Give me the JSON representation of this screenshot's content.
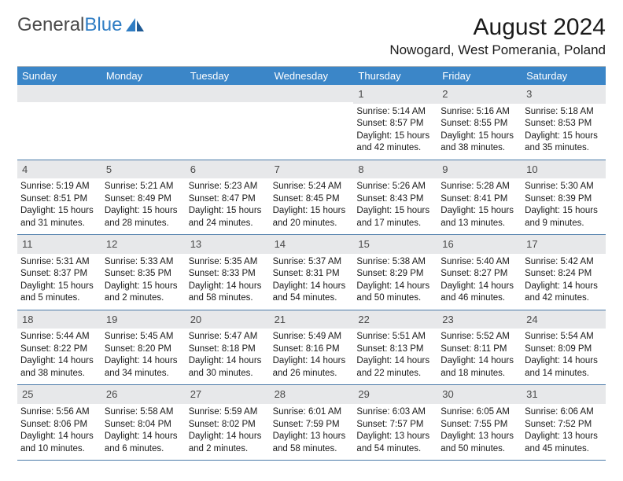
{
  "logo": {
    "text1": "General",
    "text2": "Blue"
  },
  "title": "August 2024",
  "location": "Nowogard, West Pomerania, Poland",
  "colors": {
    "header_bg": "#3b86c8",
    "daynum_bg": "#e7e8ea",
    "week_border": "#4a7aa8",
    "text": "#1a1a1a"
  },
  "weekdays": [
    "Sunday",
    "Monday",
    "Tuesday",
    "Wednesday",
    "Thursday",
    "Friday",
    "Saturday"
  ],
  "weeks": [
    [
      null,
      null,
      null,
      null,
      {
        "n": "1",
        "sr": "5:14 AM",
        "ss": "8:57 PM",
        "dl": "Daylight: 15 hours and 42 minutes."
      },
      {
        "n": "2",
        "sr": "5:16 AM",
        "ss": "8:55 PM",
        "dl": "Daylight: 15 hours and 38 minutes."
      },
      {
        "n": "3",
        "sr": "5:18 AM",
        "ss": "8:53 PM",
        "dl": "Daylight: 15 hours and 35 minutes."
      }
    ],
    [
      {
        "n": "4",
        "sr": "5:19 AM",
        "ss": "8:51 PM",
        "dl": "Daylight: 15 hours and 31 minutes."
      },
      {
        "n": "5",
        "sr": "5:21 AM",
        "ss": "8:49 PM",
        "dl": "Daylight: 15 hours and 28 minutes."
      },
      {
        "n": "6",
        "sr": "5:23 AM",
        "ss": "8:47 PM",
        "dl": "Daylight: 15 hours and 24 minutes."
      },
      {
        "n": "7",
        "sr": "5:24 AM",
        "ss": "8:45 PM",
        "dl": "Daylight: 15 hours and 20 minutes."
      },
      {
        "n": "8",
        "sr": "5:26 AM",
        "ss": "8:43 PM",
        "dl": "Daylight: 15 hours and 17 minutes."
      },
      {
        "n": "9",
        "sr": "5:28 AM",
        "ss": "8:41 PM",
        "dl": "Daylight: 15 hours and 13 minutes."
      },
      {
        "n": "10",
        "sr": "5:30 AM",
        "ss": "8:39 PM",
        "dl": "Daylight: 15 hours and 9 minutes."
      }
    ],
    [
      {
        "n": "11",
        "sr": "5:31 AM",
        "ss": "8:37 PM",
        "dl": "Daylight: 15 hours and 5 minutes."
      },
      {
        "n": "12",
        "sr": "5:33 AM",
        "ss": "8:35 PM",
        "dl": "Daylight: 15 hours and 2 minutes."
      },
      {
        "n": "13",
        "sr": "5:35 AM",
        "ss": "8:33 PM",
        "dl": "Daylight: 14 hours and 58 minutes."
      },
      {
        "n": "14",
        "sr": "5:37 AM",
        "ss": "8:31 PM",
        "dl": "Daylight: 14 hours and 54 minutes."
      },
      {
        "n": "15",
        "sr": "5:38 AM",
        "ss": "8:29 PM",
        "dl": "Daylight: 14 hours and 50 minutes."
      },
      {
        "n": "16",
        "sr": "5:40 AM",
        "ss": "8:27 PM",
        "dl": "Daylight: 14 hours and 46 minutes."
      },
      {
        "n": "17",
        "sr": "5:42 AM",
        "ss": "8:24 PM",
        "dl": "Daylight: 14 hours and 42 minutes."
      }
    ],
    [
      {
        "n": "18",
        "sr": "5:44 AM",
        "ss": "8:22 PM",
        "dl": "Daylight: 14 hours and 38 minutes."
      },
      {
        "n": "19",
        "sr": "5:45 AM",
        "ss": "8:20 PM",
        "dl": "Daylight: 14 hours and 34 minutes."
      },
      {
        "n": "20",
        "sr": "5:47 AM",
        "ss": "8:18 PM",
        "dl": "Daylight: 14 hours and 30 minutes."
      },
      {
        "n": "21",
        "sr": "5:49 AM",
        "ss": "8:16 PM",
        "dl": "Daylight: 14 hours and 26 minutes."
      },
      {
        "n": "22",
        "sr": "5:51 AM",
        "ss": "8:13 PM",
        "dl": "Daylight: 14 hours and 22 minutes."
      },
      {
        "n": "23",
        "sr": "5:52 AM",
        "ss": "8:11 PM",
        "dl": "Daylight: 14 hours and 18 minutes."
      },
      {
        "n": "24",
        "sr": "5:54 AM",
        "ss": "8:09 PM",
        "dl": "Daylight: 14 hours and 14 minutes."
      }
    ],
    [
      {
        "n": "25",
        "sr": "5:56 AM",
        "ss": "8:06 PM",
        "dl": "Daylight: 14 hours and 10 minutes."
      },
      {
        "n": "26",
        "sr": "5:58 AM",
        "ss": "8:04 PM",
        "dl": "Daylight: 14 hours and 6 minutes."
      },
      {
        "n": "27",
        "sr": "5:59 AM",
        "ss": "8:02 PM",
        "dl": "Daylight: 14 hours and 2 minutes."
      },
      {
        "n": "28",
        "sr": "6:01 AM",
        "ss": "7:59 PM",
        "dl": "Daylight: 13 hours and 58 minutes."
      },
      {
        "n": "29",
        "sr": "6:03 AM",
        "ss": "7:57 PM",
        "dl": "Daylight: 13 hours and 54 minutes."
      },
      {
        "n": "30",
        "sr": "6:05 AM",
        "ss": "7:55 PM",
        "dl": "Daylight: 13 hours and 50 minutes."
      },
      {
        "n": "31",
        "sr": "6:06 AM",
        "ss": "7:52 PM",
        "dl": "Daylight: 13 hours and 45 minutes."
      }
    ]
  ]
}
